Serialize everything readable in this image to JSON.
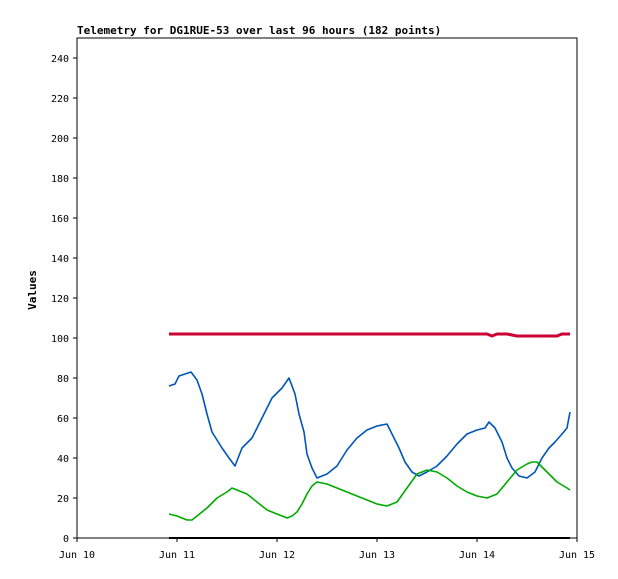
{
  "chart_data": {
    "type": "line",
    "title": "Telemetry for DG1RUE-53 over last 96 hours (182 points)",
    "ylabel": "Values",
    "xlabel": "",
    "ylim": [
      0,
      250
    ],
    "xlim": [
      10,
      15
    ],
    "y_ticks": [
      0,
      20,
      40,
      60,
      80,
      100,
      120,
      140,
      160,
      180,
      200,
      220,
      240
    ],
    "x_ticks": [
      {
        "value": 10,
        "label": "Jun 10"
      },
      {
        "value": 11,
        "label": "Jun 11"
      },
      {
        "value": 12,
        "label": "Jun 12"
      },
      {
        "value": 13,
        "label": "Jun 13"
      },
      {
        "value": 14,
        "label": "Jun 14"
      },
      {
        "value": 15,
        "label": "Jun 15"
      }
    ],
    "grid": false,
    "series": [
      {
        "color": "#cc0033",
        "x": [
          10.92,
          11.5,
          12.0,
          12.5,
          13.0,
          13.5,
          14.0,
          14.1,
          14.15,
          14.2,
          14.3,
          14.4,
          14.6,
          14.75,
          14.8,
          14.85,
          14.9,
          14.93
        ],
        "y": [
          102,
          102,
          102,
          102,
          102,
          102,
          102,
          102,
          101,
          102,
          102,
          101,
          101,
          101,
          101,
          102,
          102,
          102
        ]
      },
      {
        "color": "#0055bb",
        "x": [
          10.92,
          10.98,
          11.02,
          11.08,
          11.14,
          11.2,
          11.25,
          11.3,
          11.35,
          11.45,
          11.52,
          11.58,
          11.65,
          11.75,
          11.85,
          11.95,
          12.05,
          12.12,
          12.18,
          12.22,
          12.27,
          12.3,
          12.35,
          12.4,
          12.5,
          12.6,
          12.7,
          12.8,
          12.9,
          13.0,
          13.1,
          13.15,
          13.22,
          13.28,
          13.35,
          13.42,
          13.5,
          13.6,
          13.7,
          13.8,
          13.9,
          14.0,
          14.08,
          14.12,
          14.18,
          14.25,
          14.3,
          14.35,
          14.42,
          14.5,
          14.58,
          14.65,
          14.72,
          14.78,
          14.85,
          14.9,
          14.93
        ],
        "y": [
          76,
          77,
          81,
          82,
          83,
          79,
          72,
          62,
          53,
          45,
          40,
          36,
          45,
          50,
          60,
          70,
          75,
          80,
          72,
          62,
          53,
          42,
          35,
          30,
          32,
          36,
          44,
          50,
          54,
          56,
          57,
          52,
          45,
          38,
          33,
          31,
          33,
          36,
          41,
          47,
          52,
          54,
          55,
          58,
          55,
          48,
          40,
          35,
          31,
          30,
          33,
          40,
          45,
          48,
          52,
          55,
          63
        ]
      },
      {
        "color": "#00aa00",
        "x": [
          10.92,
          11.0,
          11.05,
          11.1,
          11.15,
          11.2,
          11.3,
          11.4,
          11.5,
          11.55,
          11.6,
          11.7,
          11.8,
          11.9,
          12.0,
          12.05,
          12.1,
          12.15,
          12.2,
          12.25,
          12.3,
          12.35,
          12.4,
          12.5,
          12.6,
          12.7,
          12.8,
          12.9,
          13.0,
          13.1,
          13.2,
          13.3,
          13.4,
          13.5,
          13.6,
          13.7,
          13.8,
          13.9,
          14.0,
          14.1,
          14.2,
          14.3,
          14.4,
          14.5,
          14.55,
          14.6,
          14.7,
          14.8,
          14.9,
          14.93
        ],
        "y": [
          12,
          11,
          10,
          9,
          9,
          11,
          15,
          20,
          23,
          25,
          24,
          22,
          18,
          14,
          12,
          11,
          10,
          11,
          13,
          17,
          22,
          26,
          28,
          27,
          25,
          23,
          21,
          19,
          17,
          16,
          18,
          25,
          32,
          34,
          33,
          30,
          26,
          23,
          21,
          20,
          22,
          28,
          34,
          37,
          38,
          38,
          33,
          28,
          25,
          24
        ]
      },
      {
        "color": "#000000",
        "x": [
          10.92,
          14.93
        ],
        "y": [
          0,
          0
        ]
      }
    ]
  }
}
